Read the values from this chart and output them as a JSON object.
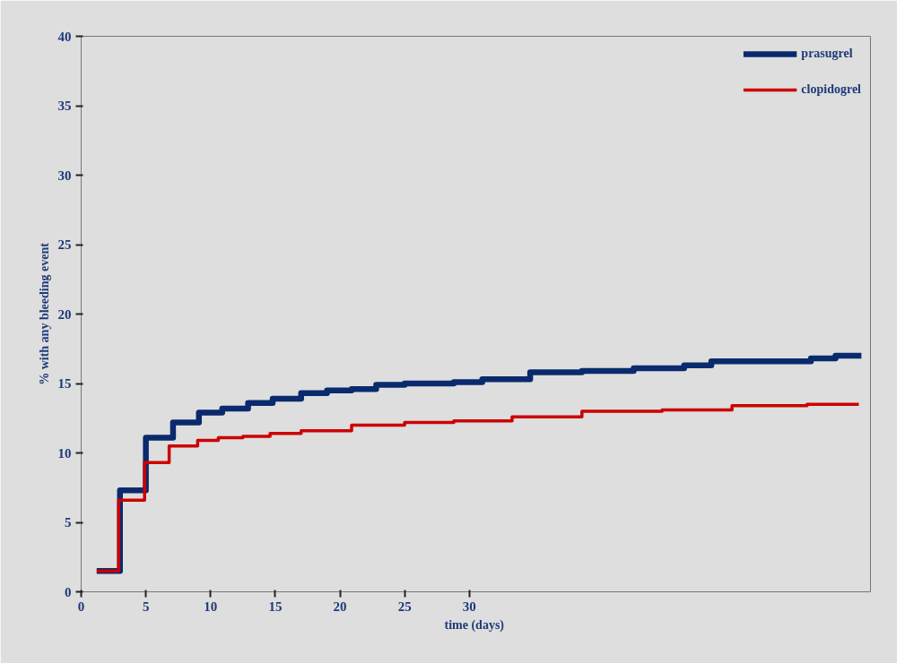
{
  "chart_data": {
    "type": "step",
    "xlabel": "time  (days)",
    "ylabel": "% with any bleeding event",
    "xlim": [
      0,
      61
    ],
    "xticks": [
      0,
      5,
      10,
      15,
      20,
      25,
      30
    ],
    "ylim": [
      0,
      40
    ],
    "yticks": [
      0,
      5,
      10,
      15,
      20,
      25,
      30,
      35,
      40
    ],
    "grid": false,
    "legend": "top right",
    "line_style": "solid",
    "marker": "none",
    "series": [
      {
        "name": "prasugrel",
        "color": "#0a2a6e",
        "x": [
          1.2,
          3.0,
          5.0,
          7.1,
          9.1,
          10.9,
          12.9,
          14.8,
          17.0,
          19.0,
          20.9,
          22.8,
          25.0,
          28.8,
          31.0,
          34.7,
          38.7,
          42.7,
          46.6,
          48.7,
          56.4,
          58.3,
          60.3
        ],
        "values": [
          1.5,
          7.3,
          11.1,
          12.2,
          12.9,
          13.2,
          13.6,
          13.9,
          14.3,
          14.5,
          14.6,
          14.9,
          15.0,
          15.1,
          15.3,
          15.8,
          15.9,
          16.1,
          16.3,
          16.6,
          16.8,
          17.0,
          17.0
        ]
      },
      {
        "name": "clopidogrel",
        "color": "#cc0000",
        "x": [
          1.2,
          2.9,
          4.9,
          6.8,
          9.0,
          10.6,
          12.5,
          14.6,
          17.0,
          20.9,
          25.0,
          28.8,
          33.3,
          38.7,
          44.9,
          50.3,
          56.1,
          60.1
        ],
        "values": [
          1.5,
          6.6,
          9.3,
          10.5,
          10.9,
          11.1,
          11.2,
          11.4,
          11.6,
          12.0,
          12.2,
          12.3,
          12.6,
          13.0,
          13.1,
          13.4,
          13.5,
          13.5
        ]
      }
    ]
  }
}
